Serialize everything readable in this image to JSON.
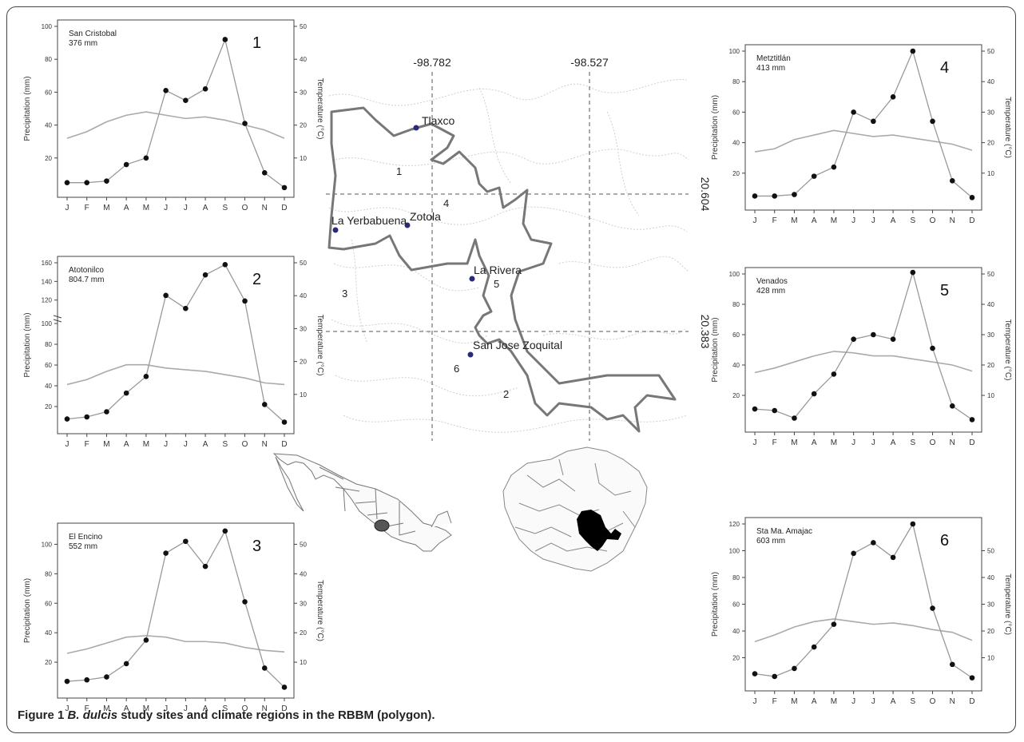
{
  "chart_data": [
    {
      "type": "line",
      "panel_number": "1",
      "title": "San Cristobal",
      "subtitle": "376 mm",
      "xlabel": "",
      "ylabel": "Precipitation (mm)",
      "y2label": "Temperature (°C)",
      "categories": [
        "J",
        "F",
        "M",
        "A",
        "M",
        "J",
        "J",
        "A",
        "S",
        "O",
        "N",
        "D"
      ],
      "ylim": [
        0,
        100
      ],
      "yticks": [
        20,
        40,
        60,
        80,
        100
      ],
      "y2lim": [
        0,
        50
      ],
      "y2ticks": [
        10,
        20,
        30,
        40,
        50
      ],
      "series": [
        {
          "values": [
            5,
            5,
            6,
            16,
            20,
            61,
            55,
            62,
            92,
            41,
            11,
            2
          ]
        },
        {
          "axis": "right",
          "values": [
            16,
            18,
            21,
            23,
            24,
            23,
            22,
            22.5,
            21.5,
            20,
            18.5,
            16
          ]
        }
      ]
    },
    {
      "type": "line",
      "panel_number": "2",
      "title": "Atotonilco",
      "subtitle": "804.7 mm",
      "xlabel": "",
      "ylabel": "Precipitation (mm)",
      "y2label": "Temperature (°C)",
      "categories": [
        "J",
        "F",
        "M",
        "A",
        "M",
        "J",
        "J",
        "A",
        "S",
        "O",
        "N",
        "D"
      ],
      "axis_break": true,
      "ylim": [
        0,
        160
      ],
      "yticks_lower": [
        20,
        40,
        60,
        80,
        100
      ],
      "yticks_upper": [
        120,
        140,
        160
      ],
      "y2lim": [
        0,
        50
      ],
      "y2ticks": [
        10,
        20,
        30,
        40,
        50
      ],
      "series": [
        {
          "values": [
            8,
            10,
            15,
            33,
            49,
            125,
            111,
            147,
            158,
            119,
            22,
            5
          ]
        },
        {
          "axis": "right",
          "values": [
            13,
            14.5,
            17,
            19,
            19,
            18,
            17.5,
            17,
            16,
            15,
            13.5,
            13
          ]
        }
      ]
    },
    {
      "type": "line",
      "panel_number": "3",
      "title": "El Encino",
      "subtitle": "552 mm",
      "xlabel": "",
      "ylabel": "Precipitation (mm)",
      "y2label": "Temperature (°C)",
      "categories": [
        "J",
        "F",
        "M",
        "A",
        "M",
        "J",
        "J",
        "A",
        "S",
        "O",
        "N",
        "D"
      ],
      "ylim": [
        0,
        110
      ],
      "yticks": [
        20,
        40,
        60,
        80,
        100
      ],
      "y2lim": [
        0,
        55
      ],
      "y2ticks": [
        10,
        20,
        30,
        40,
        50
      ],
      "series": [
        {
          "values": [
            7,
            8,
            10,
            19,
            35,
            94,
            102,
            85,
            109,
            61,
            16,
            3
          ]
        },
        {
          "axis": "right",
          "values": [
            13,
            14.5,
            16.5,
            18.5,
            19,
            18.5,
            17,
            17,
            16.5,
            15,
            14,
            13.5
          ]
        }
      ]
    },
    {
      "type": "line",
      "panel_number": "4",
      "title": "Metztitlán",
      "subtitle": "413 mm",
      "xlabel": "",
      "ylabel": "Precipitation (mm)",
      "y2label": "Temperature (°C)",
      "categories": [
        "J",
        "F",
        "M",
        "A",
        "M",
        "J",
        "J",
        "A",
        "S",
        "O",
        "N",
        "D"
      ],
      "ylim": [
        0,
        100
      ],
      "yticks": [
        20,
        40,
        60,
        80,
        100
      ],
      "y2lim": [
        0,
        50
      ],
      "y2ticks": [
        10,
        20,
        30,
        40,
        50
      ],
      "series": [
        {
          "values": [
            5,
            5,
            6,
            18,
            24,
            60,
            54,
            70,
            100,
            54,
            15,
            4
          ]
        },
        {
          "axis": "right",
          "values": [
            17,
            18,
            21,
            22.5,
            24,
            23,
            22,
            22.5,
            21.5,
            20.5,
            19.5,
            17.5
          ]
        }
      ]
    },
    {
      "type": "line",
      "panel_number": "5",
      "title": "Venados",
      "subtitle": "428 mm",
      "xlabel": "",
      "ylabel": "Precipitation (mm)",
      "y2label": "Temperature (°C)",
      "categories": [
        "J",
        "F",
        "M",
        "A",
        "M",
        "J",
        "J",
        "A",
        "S",
        "O",
        "N",
        "D"
      ],
      "ylim": [
        0,
        100
      ],
      "yticks": [
        20,
        40,
        60,
        80,
        100
      ],
      "y2lim": [
        0,
        50
      ],
      "y2ticks": [
        10,
        20,
        30,
        40,
        50
      ],
      "series": [
        {
          "values": [
            11,
            10,
            5,
            21,
            34,
            57,
            60,
            57,
            101,
            51,
            13,
            4
          ]
        },
        {
          "axis": "right",
          "values": [
            17.5,
            19,
            21,
            23,
            24.5,
            24,
            23,
            23,
            22,
            21,
            20,
            18
          ]
        }
      ]
    },
    {
      "type": "line",
      "panel_number": "6",
      "title": "Sta Ma. Amajac",
      "subtitle": "603 mm",
      "xlabel": "",
      "ylabel": "Precipitation (mm)",
      "y2label": "Temperature (°C)",
      "categories": [
        "J",
        "F",
        "M",
        "A",
        "M",
        "J",
        "J",
        "A",
        "S",
        "O",
        "N",
        "D"
      ],
      "ylim": [
        0,
        120
      ],
      "yticks": [
        20,
        40,
        60,
        80,
        100,
        120
      ],
      "y2lim": [
        0,
        60
      ],
      "y2ticks": [
        10,
        20,
        30,
        40,
        50
      ],
      "series": [
        {
          "values": [
            8,
            6,
            12,
            28,
            45,
            98,
            106,
            95,
            120,
            57,
            15,
            5
          ]
        },
        {
          "axis": "right",
          "values": [
            16,
            18.5,
            21.5,
            23.5,
            24.5,
            23.5,
            22.5,
            23,
            22,
            20.5,
            19.5,
            16.5
          ]
        }
      ]
    }
  ],
  "map": {
    "lon_labels": [
      "-98.782",
      "-98.527"
    ],
    "lat_labels": [
      "20.604",
      "20.383"
    ],
    "sites": [
      "Tlaxco",
      "La Yerbabuena",
      "Zotola",
      "La Rivera",
      "San Jose Zoquital"
    ],
    "region_labels": [
      "1",
      "2",
      "3",
      "4",
      "5",
      "6"
    ]
  },
  "caption": {
    "label": "Figure 1",
    "species": "B. dulcis",
    "text": "study sites and climate regions in the RBBM (polygon)."
  },
  "colors": {
    "frame": "#444444",
    "precip_line": "#999999",
    "temp_line": "#aaaaaa",
    "point": "#111111",
    "site_dot": "#2a2a7a",
    "polygon": "#777777",
    "state_fill": "#000000"
  }
}
